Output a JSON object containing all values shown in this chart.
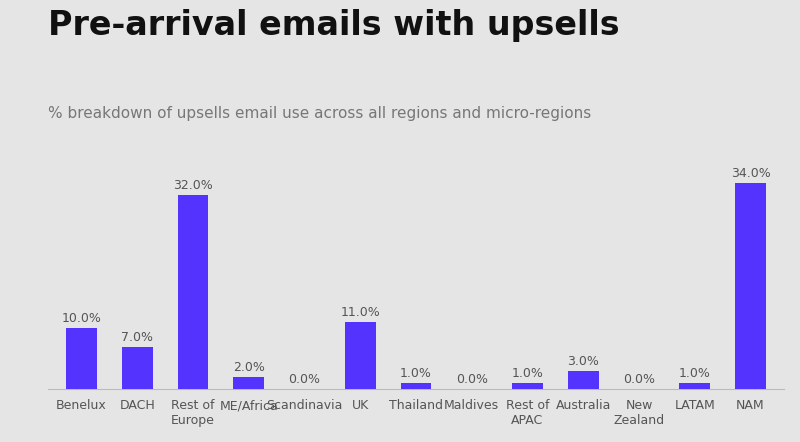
{
  "title": "Pre-arrival emails with upsells",
  "subtitle": "% breakdown of upsells email use across all regions and micro-regions",
  "categories": [
    "Benelux",
    "DACH",
    "Rest of\nEurope",
    "ME/Africa",
    "Scandinavia",
    "UK",
    "Thailand",
    "Maldives",
    "Rest of\nAPAC",
    "Australia",
    "New\nZealand",
    "LATAM",
    "NAM"
  ],
  "values": [
    10.0,
    7.0,
    32.0,
    2.0,
    0.0,
    11.0,
    1.0,
    0.0,
    1.0,
    3.0,
    0.0,
    1.0,
    34.0
  ],
  "bar_color": "#5533ff",
  "background_color": "#e5e5e5",
  "plot_bg_color": "#e5e5e5",
  "title_fontsize": 24,
  "subtitle_fontsize": 11,
  "label_fontsize": 9,
  "tick_fontsize": 9,
  "title_color": "#111111",
  "subtitle_color": "#777777",
  "label_color": "#555555",
  "tick_color": "#555555",
  "ylim": [
    0,
    38
  ]
}
